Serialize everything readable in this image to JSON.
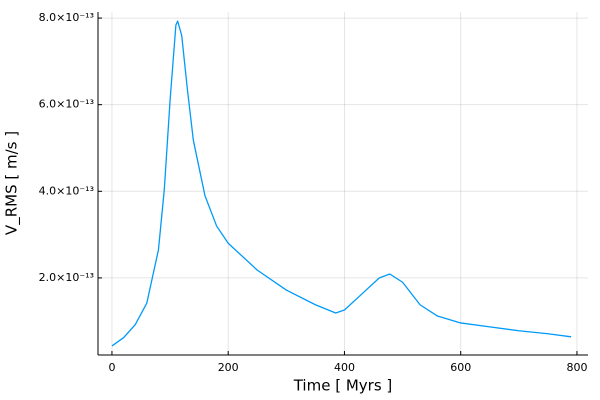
{
  "chart_data": {
    "type": "line",
    "x_label": "Time [ Myrs ]",
    "y_label": "V_RMS [ m/s ]",
    "x": [
      0,
      20,
      40,
      60,
      80,
      90,
      100,
      110,
      113,
      120,
      130,
      140,
      160,
      180,
      200,
      250,
      300,
      350,
      385,
      400,
      430,
      460,
      478,
      500,
      530,
      560,
      600,
      650,
      700,
      750,
      790
    ],
    "series": [
      {
        "color": "#009af9",
        "values": [
          4.3e-14,
          6.2e-14,
          9.2e-14,
          1.42e-13,
          2.65e-13,
          4.03e-13,
          6.1e-13,
          7.84e-13,
          7.93e-13,
          7.6e-13,
          6.33e-13,
          5.18e-13,
          3.9e-13,
          3.2e-13,
          2.8e-13,
          2.18e-13,
          1.72e-13,
          1.38e-13,
          1.19e-13,
          1.26e-13,
          1.63e-13,
          2e-13,
          2.09e-13,
          1.9e-13,
          1.38e-13,
          1.12e-13,
          9.6e-14,
          8.7e-14,
          7.8e-14,
          7.1e-14,
          6.4e-14
        ]
      }
    ],
    "xlim": [
      -24,
      819
    ],
    "xticks": [
      0,
      200,
      400,
      600,
      800
    ],
    "ylim": [
      2.2e-14,
      8.14e-13
    ],
    "yticks": [
      {
        "value": 2e-13,
        "label": "2.0×10⁻¹³"
      },
      {
        "value": 4e-13,
        "label": "4.0×10⁻¹³"
      },
      {
        "value": 6e-13,
        "label": "6.0×10⁻¹³"
      },
      {
        "value": 8e-13,
        "label": "8.0×10⁻¹³"
      }
    ],
    "grid": true
  }
}
